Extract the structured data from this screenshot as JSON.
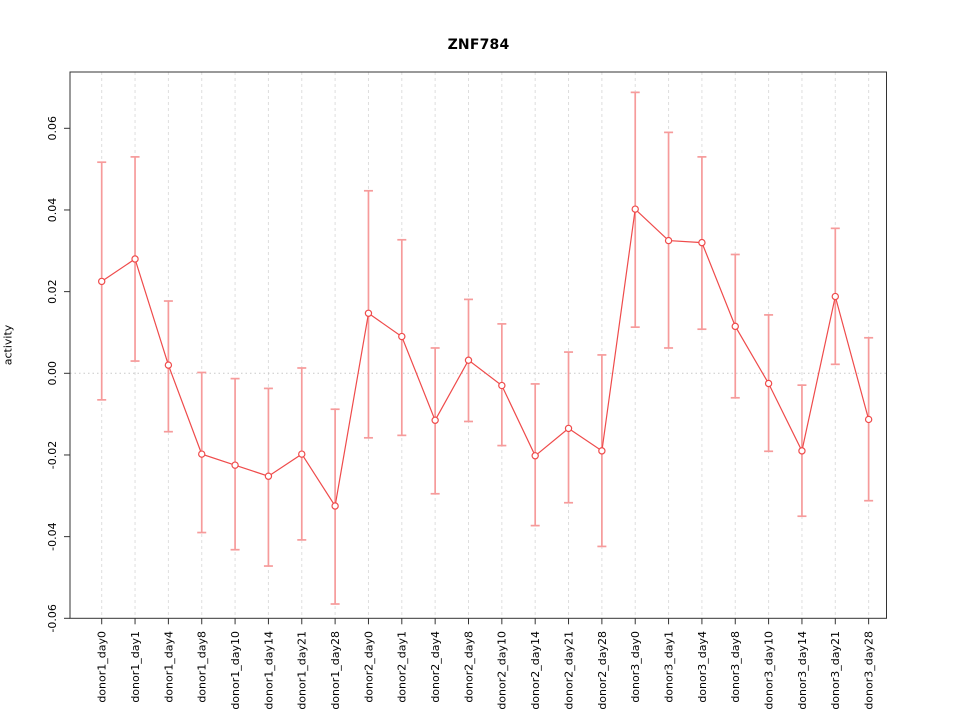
{
  "header": {
    "title": "ZNF784"
  },
  "chart_data": {
    "type": "line",
    "title": "ZNF784",
    "xlabel": "",
    "ylabel": "activity",
    "ylim": [
      -0.06,
      0.06
    ],
    "y_ticks": [
      0.06,
      0.04,
      0.02,
      0.0,
      -0.02,
      -0.04,
      -0.06
    ],
    "y_tick_labels": [
      "0.06",
      "0.04",
      "0.02",
      "0.00",
      "-0.02",
      "-0.04",
      "-0.06"
    ],
    "grid": "vertical dashed gridline at every category; dotted horizontal line at y=0; full box around plot; no legend",
    "marker": "open-circle",
    "error_bars": true,
    "categories": [
      "donor1_day0",
      "donor1_day1",
      "donor1_day4",
      "donor1_day8",
      "donor1_day10",
      "donor1_day14",
      "donor1_day21",
      "donor1_day28",
      "donor2_day0",
      "donor2_day1",
      "donor2_day4",
      "donor2_day8",
      "donor2_day10",
      "donor2_day14",
      "donor2_day21",
      "donor2_day28",
      "donor3_day0",
      "donor3_day1",
      "donor3_day4",
      "donor3_day8",
      "donor3_day10",
      "donor3_day14",
      "donor3_day21",
      "donor3_day28"
    ],
    "series": [
      {
        "name": "activity",
        "values": [
          0.0225,
          0.028,
          0.002,
          -0.0198,
          -0.0225,
          -0.0252,
          -0.0198,
          -0.0325,
          0.0147,
          0.009,
          -0.0115,
          0.0032,
          -0.003,
          -0.0202,
          -0.0135,
          -0.019,
          0.0402,
          0.0325,
          0.032,
          0.0115,
          -0.0025,
          -0.019,
          0.0188,
          -0.0113
        ],
        "lower": [
          -0.0065,
          0.003,
          -0.0143,
          -0.039,
          -0.0432,
          -0.0472,
          -0.0408,
          -0.0565,
          -0.0158,
          -0.0152,
          -0.0295,
          -0.0118,
          -0.0177,
          -0.0373,
          -0.0317,
          -0.0424,
          0.0113,
          0.0062,
          0.0108,
          -0.006,
          -0.0191,
          -0.035,
          0.0022,
          -0.0312
        ],
        "upper": [
          0.0517,
          0.053,
          0.0177,
          0.0002,
          -0.0013,
          -0.0037,
          0.0013,
          -0.0088,
          0.0447,
          0.0327,
          0.0062,
          0.0181,
          0.0121,
          -0.0026,
          0.0052,
          0.0045,
          0.0688,
          0.059,
          0.053,
          0.0291,
          0.0143,
          -0.0029,
          0.0355,
          0.0087
        ]
      }
    ],
    "colors": {
      "line": "#ef4b4b",
      "marker": "#ef4b4b",
      "error_bar": "#f69b9b",
      "grid": "#dedede",
      "zero_line": "#c9c9c9",
      "box": "#333333",
      "text": "#000000",
      "background": "#ffffff"
    },
    "legend_position": "none"
  }
}
